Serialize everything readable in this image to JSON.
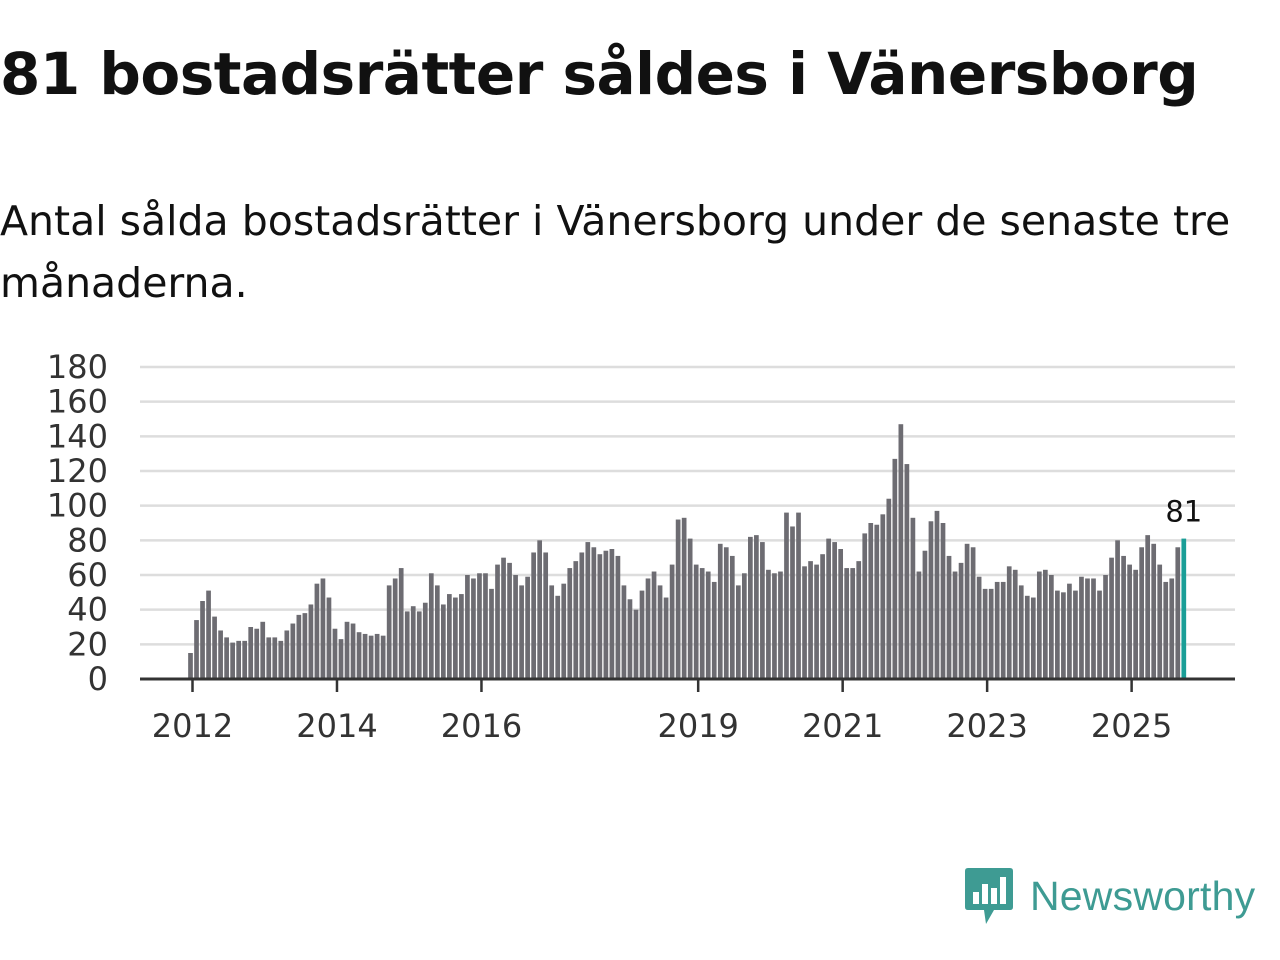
{
  "title": "81 bostadsrätter såldes i Vänersborg",
  "subtitle": "Antal sålda bostadsrätter i Vänersborg under de senaste tre månaderna.",
  "brand": {
    "name": "Newsworthy",
    "color": "#3e9b93",
    "icon": "newsworthy-logo-icon"
  },
  "colors": {
    "bar": "#6d6c72",
    "highlight": "#1a9e97",
    "grid": "#dddddd",
    "axis": "#333333"
  },
  "chart_data": {
    "type": "bar",
    "title": "Antal sålda bostadsrätter i Vänersborg",
    "ylim": [
      0,
      180
    ],
    "yticks": [
      "0",
      "20",
      "40",
      "60",
      "80",
      "100",
      "120",
      "140",
      "160",
      "180"
    ],
    "xticks": [
      {
        "label": "2012",
        "index": 0
      },
      {
        "label": "2014",
        "index": 24
      },
      {
        "label": "2016",
        "index": 48
      },
      {
        "label": "2019",
        "index": 84
      },
      {
        "label": "2021",
        "index": 108
      },
      {
        "label": "2023",
        "index": 132
      },
      {
        "label": "2025",
        "index": 156
      }
    ],
    "start": "2012-01",
    "end": "2025-09",
    "grid": true,
    "highlight_label": "81",
    "values": [
      15,
      34,
      45,
      51,
      36,
      28,
      24,
      21,
      22,
      22,
      30,
      29,
      33,
      24,
      24,
      22,
      28,
      32,
      37,
      38,
      43,
      55,
      58,
      47,
      29,
      23,
      33,
      32,
      27,
      26,
      25,
      26,
      25,
      54,
      58,
      64,
      39,
      42,
      39,
      44,
      61,
      54,
      43,
      49,
      47,
      49,
      60,
      58,
      61,
      61,
      52,
      66,
      70,
      67,
      60,
      54,
      59,
      73,
      80,
      73,
      54,
      48,
      55,
      64,
      68,
      73,
      79,
      76,
      72,
      74,
      75,
      71,
      54,
      46,
      40,
      51,
      58,
      62,
      54,
      47,
      66,
      92,
      93,
      81,
      66,
      64,
      62,
      56,
      78,
      76,
      71,
      54,
      61,
      82,
      83,
      79,
      63,
      61,
      62,
      96,
      88,
      96,
      65,
      68,
      66,
      72,
      81,
      79,
      75,
      64,
      64,
      68,
      84,
      90,
      89,
      95,
      104,
      127,
      147,
      124,
      93,
      62,
      74,
      91,
      97,
      90,
      71,
      62,
      67,
      78,
      76,
      59,
      52,
      52,
      56,
      56,
      65,
      63,
      54,
      48,
      47,
      62,
      63,
      60,
      51,
      50,
      55,
      51,
      59,
      58,
      58,
      51,
      60,
      70,
      80,
      71,
      66,
      63,
      76,
      83,
      78,
      66,
      56,
      58,
      76,
      81
    ]
  }
}
